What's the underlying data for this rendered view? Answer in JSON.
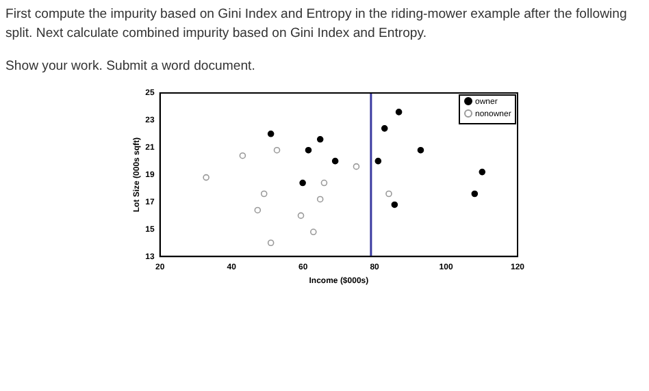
{
  "chart_data": {
    "type": "scatter",
    "title": "First compute the impurity based on Gini Index and Entropy in the riding-mower example after the following split. Next calculate combined impurity based on Gini Index and Entropy.",
    "subtitle": "Show your work. Submit a word document.",
    "xlabel": "Income ($000s)",
    "ylabel": "Lot Size (000s sqft)",
    "series": [
      {
        "name": "owner",
        "color": "#000000",
        "marker": "circle",
        "x": [
          51.0,
          64.8,
          61.5,
          69.0,
          59.9,
          86.8,
          82.8,
          92.9,
          81.0,
          110.1,
          108.0,
          85.6
        ],
        "values": [
          22.0,
          21.6,
          20.8,
          20.0,
          18.4,
          23.6,
          22.4,
          20.8,
          20.0,
          19.2,
          17.6,
          16.8
        ]
      },
      {
        "name": "nonowner",
        "color": "#999999",
        "marker": "circle",
        "x": [
          32.9,
          43.1,
          52.7,
          74.9,
          49.1,
          65.9,
          47.3,
          64.8,
          59.4,
          62.9,
          51.0,
          84.0
        ],
        "values": [
          18.8,
          20.4,
          20.8,
          19.6,
          17.6,
          18.4,
          16.4,
          17.2,
          16.0,
          14.8,
          14.0,
          17.6
        ]
      }
    ],
    "xlim": [
      20,
      120
    ],
    "xticks": [
      20,
      40,
      60,
      80,
      100,
      120
    ],
    "ylim": [
      13,
      25
    ],
    "yticks": [
      13,
      15,
      17,
      19,
      21,
      23,
      25
    ],
    "ref_lines": [
      {
        "axis": "x",
        "value": 79,
        "color": "#3a3aa0"
      }
    ],
    "legend": "top right",
    "grid": false
  }
}
